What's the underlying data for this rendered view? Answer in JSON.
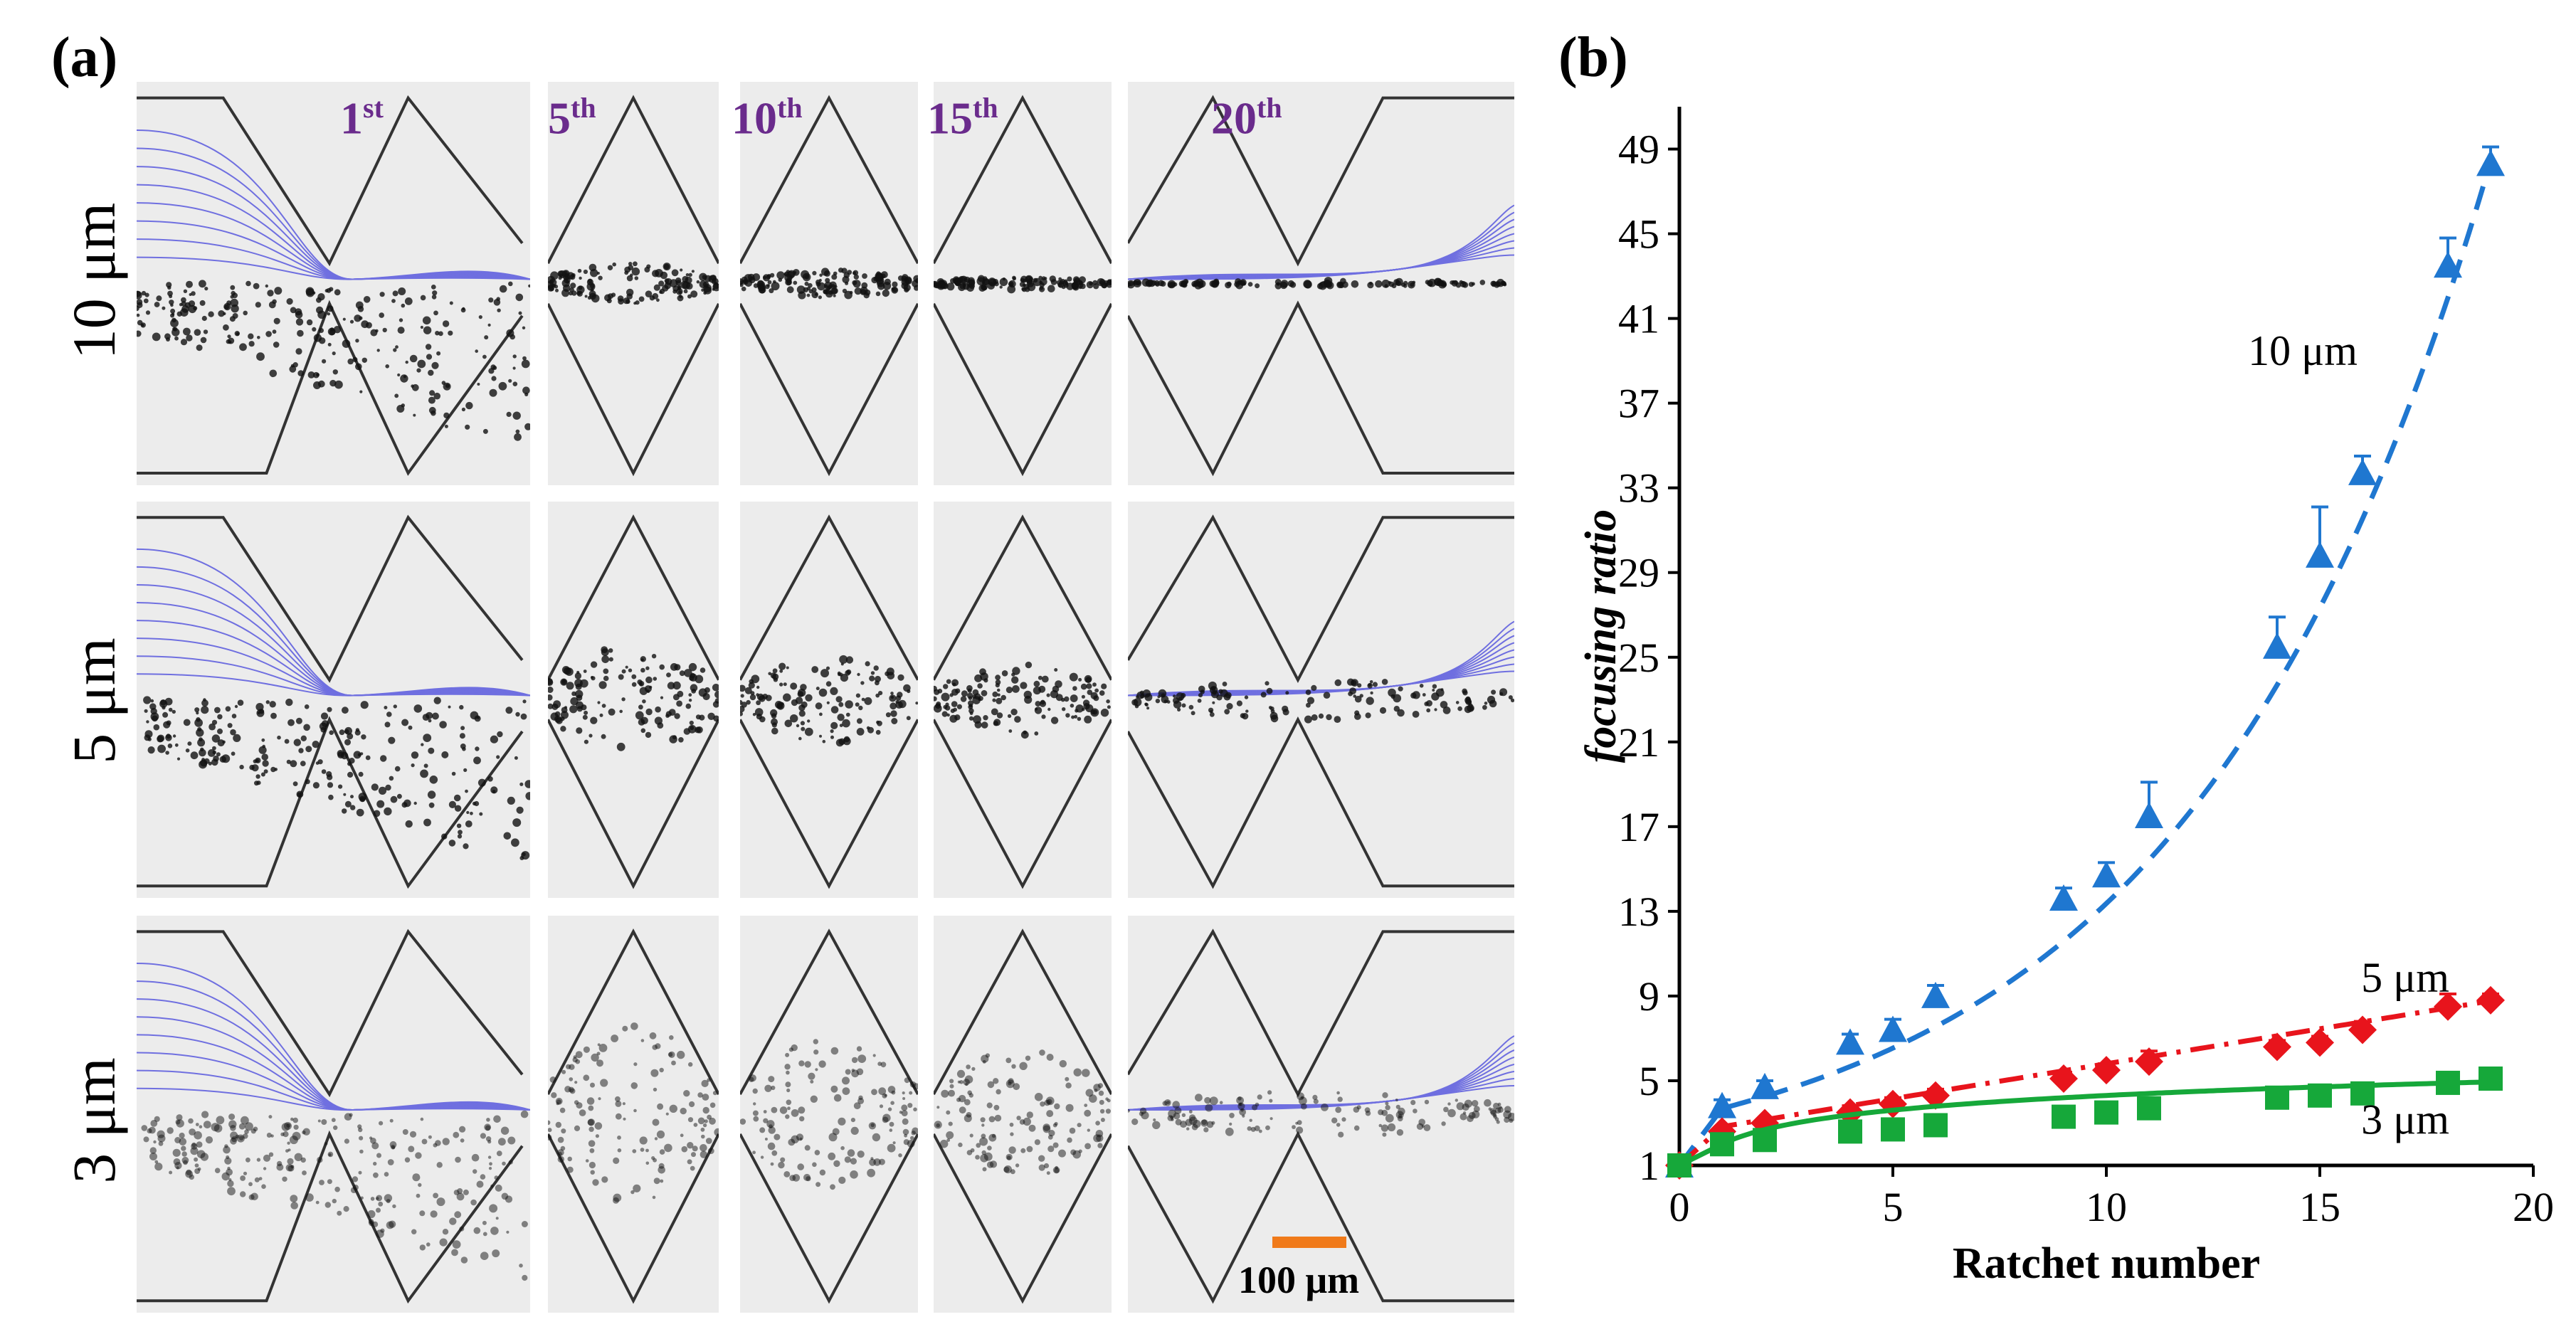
{
  "panel_a": {
    "label": "(a)",
    "columns": [
      {
        "base": "1",
        "sup": "st"
      },
      {
        "base": "5",
        "sup": "th"
      },
      {
        "base": "10",
        "sup": "th"
      },
      {
        "base": "15",
        "sup": "th"
      },
      {
        "base": "20",
        "sup": "th"
      }
    ],
    "rows": [
      "10 μm",
      "5 μm",
      "3 μm"
    ],
    "scale_bar_label": "100 μm",
    "colors": {
      "streamline": "#6f6fe0",
      "particle": "#111111",
      "scale_bar": "#f07a1a",
      "tile_bg": "#ececec"
    }
  },
  "panel_b": {
    "label": "(b)"
  },
  "chart_data": {
    "type": "line",
    "title": "",
    "xlabel": "Ratchet number",
    "ylabel": "focusing ratio",
    "xlim": [
      0,
      20
    ],
    "ylim": [
      1,
      51
    ],
    "xticks": [
      0,
      5,
      10,
      15,
      20
    ],
    "yticks": [
      1,
      5,
      9,
      13,
      17,
      21,
      25,
      29,
      33,
      37,
      41,
      45,
      49
    ],
    "grid": false,
    "series": [
      {
        "name": "10 μm",
        "color": "#1f77d0",
        "marker": "triangle",
        "line_style": "dash",
        "x": [
          0,
          1,
          2,
          4,
          5,
          6,
          9,
          10,
          11,
          14,
          15,
          16,
          18,
          19
        ],
        "y": [
          1,
          3.8,
          4.7,
          6.8,
          7.4,
          9.0,
          13.6,
          14.7,
          17.5,
          25.5,
          29.8,
          33.7,
          43.5,
          48.3
        ],
        "err": [
          0,
          0.3,
          0.3,
          0.4,
          0.5,
          0.5,
          0.5,
          0.6,
          1.6,
          1.4,
          2.3,
          0.8,
          1.3,
          0.8
        ],
        "fit": {
          "kind": "exp",
          "a": 3.2,
          "b": 0.143,
          "from": 1,
          "to": 19
        }
      },
      {
        "name": "5 μm",
        "color": "#e8141c",
        "marker": "diamond",
        "line_style": "dashdot",
        "x": [
          0,
          1,
          2,
          4,
          5,
          6,
          9,
          10,
          11,
          14,
          15,
          16,
          18,
          19
        ],
        "y": [
          1,
          2.6,
          3.0,
          3.5,
          3.9,
          4.3,
          5.1,
          5.5,
          5.9,
          6.6,
          6.8,
          7.4,
          8.5,
          8.8
        ],
        "err": [
          0,
          0.2,
          0.2,
          0.2,
          0.3,
          0.3,
          0.3,
          0.3,
          0.5,
          0.3,
          0.3,
          0.4,
          0.6,
          0.3
        ],
        "fit": {
          "kind": "linear",
          "a": 2.5,
          "b": 0.33,
          "from": 1,
          "to": 19
        }
      },
      {
        "name": "3 μm",
        "color": "#16a83a",
        "marker": "square",
        "line_style": "solid",
        "x": [
          0,
          1,
          2,
          4,
          5,
          6,
          9,
          10,
          11,
          14,
          15,
          16,
          18,
          19
        ],
        "y": [
          1,
          2.0,
          2.2,
          2.6,
          2.7,
          2.9,
          3.3,
          3.5,
          3.7,
          4.2,
          4.3,
          4.4,
          4.9,
          5.1
        ],
        "err": [
          0,
          0.1,
          0.1,
          0.1,
          0.1,
          0.1,
          0.1,
          0.1,
          0.1,
          0.1,
          0.1,
          0.1,
          0.1,
          0.1
        ],
        "fit": {
          "kind": "log",
          "a": 2.0,
          "b": 1.0,
          "from": 1,
          "to": 19
        }
      }
    ],
    "annotations": [
      {
        "text": "10 μm",
        "x": 14.6,
        "y": 38.8
      },
      {
        "text": "5 μm",
        "x": 17.0,
        "y": 9.2
      },
      {
        "text": "3 μm",
        "x": 17.0,
        "y": 2.5
      }
    ]
  }
}
